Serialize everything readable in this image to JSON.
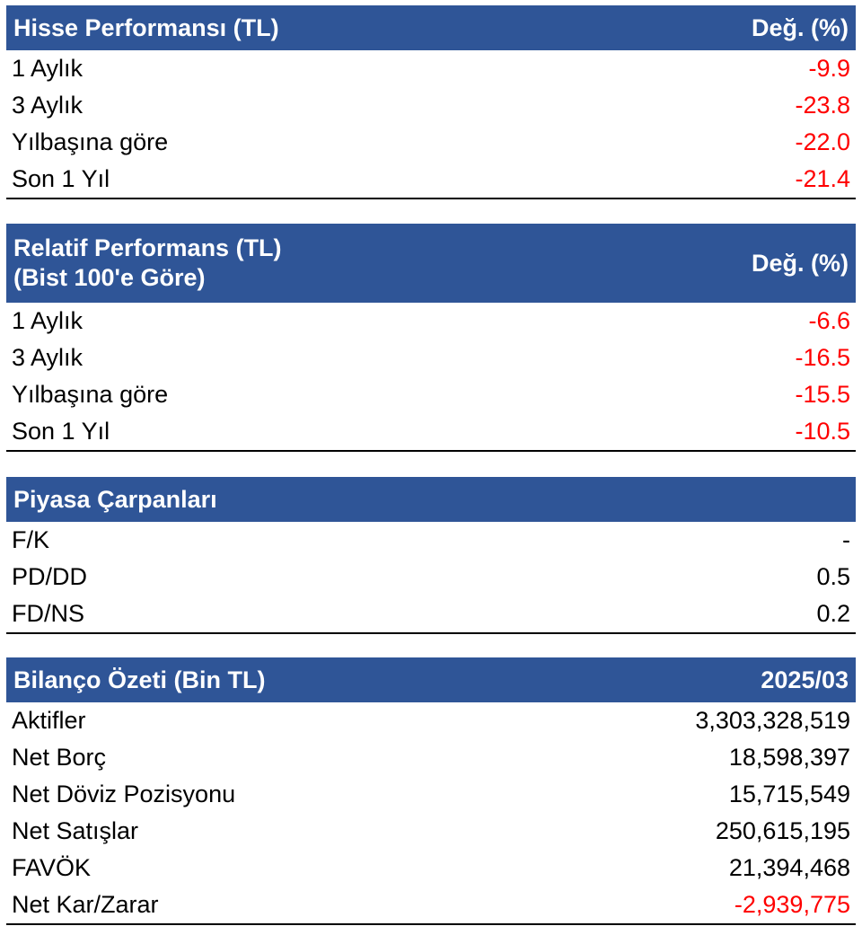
{
  "sections": [
    {
      "title_lines": [
        "Hisse Performansı (TL)"
      ],
      "value_header": "Değ. (%)",
      "rows": [
        {
          "label": "1 Aylık",
          "value": "-9.9",
          "negative": true
        },
        {
          "label": "3 Aylık",
          "value": "-23.8",
          "negative": true
        },
        {
          "label": "Yılbaşına göre",
          "value": "-22.0",
          "negative": true
        },
        {
          "label": "Son 1 Yıl",
          "value": "-21.4",
          "negative": true
        }
      ]
    },
    {
      "title_lines": [
        "Relatif Performans (TL)",
        "(Bist 100'e Göre)"
      ],
      "value_header": "Değ. (%)",
      "rows": [
        {
          "label": "1 Aylık",
          "value": "-6.6",
          "negative": true
        },
        {
          "label": "3 Aylık",
          "value": "-16.5",
          "negative": true
        },
        {
          "label": "Yılbaşına göre",
          "value": "-15.5",
          "negative": true
        },
        {
          "label": "Son 1 Yıl",
          "value": "-10.5",
          "negative": true
        }
      ]
    },
    {
      "title_lines": [
        "Piyasa Çarpanları"
      ],
      "value_header": "",
      "rows": [
        {
          "label": "F/K",
          "value": "-",
          "negative": false
        },
        {
          "label": "PD/DD",
          "value": "0.5",
          "negative": false
        },
        {
          "label": "FD/NS",
          "value": "0.2",
          "negative": false
        }
      ]
    },
    {
      "title_lines": [
        "Bilanço Özeti (Bin TL)"
      ],
      "value_header": "2025/03",
      "rows": [
        {
          "label": "Aktifler",
          "value": "3,303,328,519",
          "negative": false
        },
        {
          "label": "Net Borç",
          "value": "18,598,397",
          "negative": false
        },
        {
          "label": "Net Döviz Pozisyonu",
          "value": "15,715,549",
          "negative": false
        },
        {
          "label": "Net Satışlar",
          "value": "250,615,195",
          "negative": false
        },
        {
          "label": "FAVÖK",
          "value": "21,394,468",
          "negative": false
        },
        {
          "label": "Net Kar/Zarar",
          "value": "-2,939,775",
          "negative": true
        }
      ]
    }
  ]
}
